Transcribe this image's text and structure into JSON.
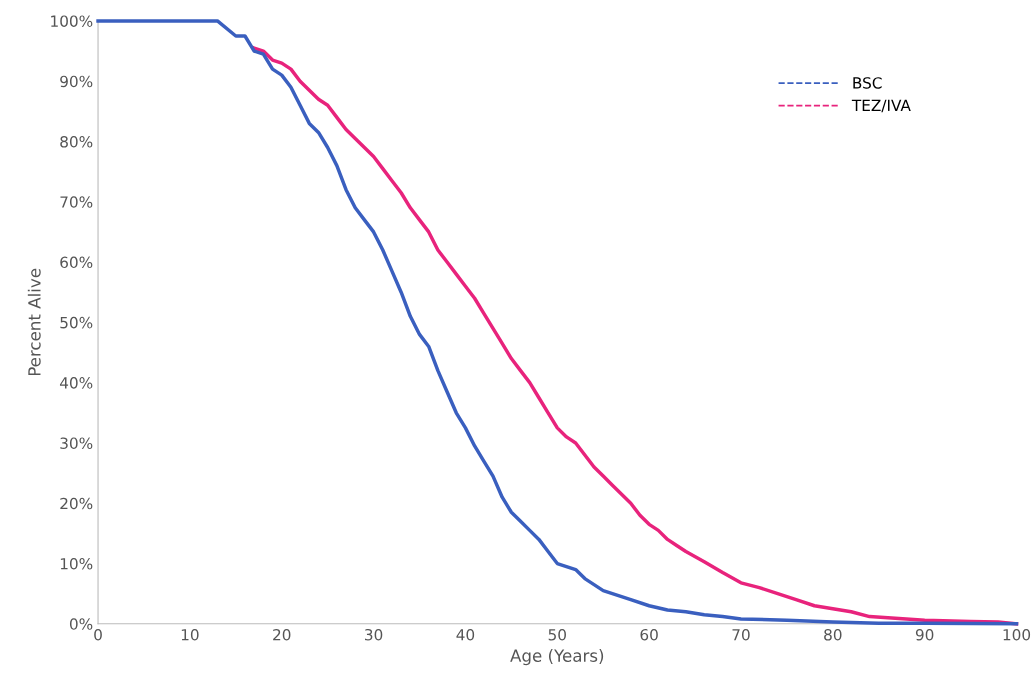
{
  "chart_data": {
    "type": "line",
    "xlabel": "Age (Years)",
    "ylabel": "Percent Alive",
    "xlim": [
      0,
      100
    ],
    "xticks": [
      0,
      10,
      20,
      30,
      40,
      50,
      60,
      70,
      80,
      90,
      100
    ],
    "ylim": [
      0,
      100
    ],
    "yticks": [
      {
        "value": 0,
        "label": "0%"
      },
      {
        "value": 10,
        "label": "10%"
      },
      {
        "value": 20,
        "label": "20%"
      },
      {
        "value": 30,
        "label": "30%"
      },
      {
        "value": 40,
        "label": "40%"
      },
      {
        "value": 50,
        "label": "50%"
      },
      {
        "value": 60,
        "label": "60%"
      },
      {
        "value": 70,
        "label": "70%"
      },
      {
        "value": 80,
        "label": "80%"
      },
      {
        "value": 90,
        "label": "90%"
      },
      {
        "value": 100,
        "label": "100%"
      }
    ],
    "grid": false,
    "legend": "top right",
    "line_style": "solid",
    "series": [
      {
        "name": "BSC",
        "color": "#3a5fbf",
        "x": [
          0,
          13,
          15,
          16,
          17,
          18,
          19,
          20,
          21,
          22,
          23,
          24,
          25,
          26,
          27,
          28,
          29,
          30,
          31,
          32,
          33,
          34,
          35,
          36,
          37,
          38,
          39,
          40,
          41,
          42,
          43,
          44,
          45,
          46,
          47,
          48,
          49,
          50,
          51,
          52,
          53,
          54,
          55,
          57,
          58,
          60,
          62,
          64,
          66,
          68,
          70,
          75,
          80,
          85,
          90,
          100
        ],
        "values": [
          100,
          100,
          97.5,
          97.5,
          95,
          94.5,
          92,
          91,
          89,
          86,
          83,
          81.5,
          79,
          76,
          72,
          69,
          67,
          65,
          62,
          58.5,
          55,
          51,
          48,
          46,
          42,
          38.5,
          35,
          32.5,
          29.5,
          27,
          24.5,
          21,
          18.5,
          17,
          15.5,
          14,
          12,
          10,
          9.5,
          9,
          7.5,
          6.5,
          5.5,
          4.5,
          4,
          3,
          2.3,
          2,
          1.5,
          1.2,
          0.8,
          0.6,
          0.3,
          0.1,
          0.1,
          0
        ]
      },
      {
        "name": "TEZ/IVA",
        "color": "#e8237c",
        "x": [
          17,
          18,
          19,
          20,
          21,
          22,
          23,
          24,
          25,
          26,
          27,
          28,
          29,
          30,
          31,
          32,
          33,
          34,
          35,
          36,
          37,
          38,
          39,
          40,
          41,
          42,
          43,
          44,
          45,
          46,
          47,
          48,
          49,
          50,
          51,
          52,
          53,
          54,
          55,
          56,
          57,
          58,
          59,
          60,
          61,
          62,
          63,
          64,
          66,
          68,
          70,
          72,
          74,
          76,
          78,
          80,
          82,
          84,
          86,
          88,
          90,
          92,
          95,
          98,
          100
        ],
        "values": [
          95.5,
          95,
          93.5,
          93,
          92,
          90,
          88.5,
          87,
          86,
          84,
          82,
          80.5,
          79,
          77.5,
          75.5,
          73.5,
          71.5,
          69,
          67,
          65,
          62,
          60,
          58,
          56,
          54,
          51.5,
          49,
          46.5,
          44,
          42,
          40,
          37.5,
          35,
          32.5,
          31,
          30,
          28,
          26,
          24.5,
          23,
          21.5,
          20,
          18,
          16.5,
          15.5,
          14,
          13,
          12,
          10.3,
          8.5,
          6.8,
          6,
          5,
          4,
          3,
          2.5,
          2,
          1.2,
          1,
          0.8,
          0.6,
          0.5,
          0.4,
          0.3,
          0
        ]
      }
    ]
  }
}
